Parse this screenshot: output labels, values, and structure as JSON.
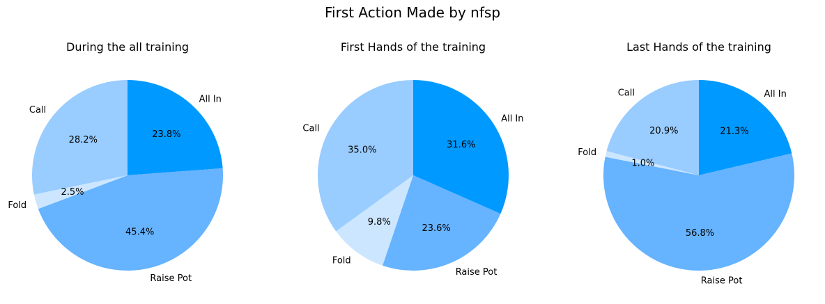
{
  "figure": {
    "title": "First Action Made by nfsp"
  },
  "chart_data": [
    {
      "type": "pie",
      "title": "During the all training",
      "labels": [
        "All In",
        "Raise Pot",
        "Fold",
        "Call"
      ],
      "values": [
        23.8,
        45.4,
        2.5,
        28.2
      ],
      "value_labels": [
        "23.8%",
        "45.4%",
        "2.5%",
        "28.2%"
      ],
      "colors": [
        "#0099ff",
        "#66b3ff",
        "#cce6ff",
        "#99ccff"
      ],
      "start_angle_deg": 90,
      "direction": "clockwise"
    },
    {
      "type": "pie",
      "title": "First Hands of the training",
      "labels": [
        "All In",
        "Raise Pot",
        "Fold",
        "Call"
      ],
      "values": [
        31.6,
        23.6,
        9.8,
        35.0
      ],
      "value_labels": [
        "31.6%",
        "23.6%",
        "9.8%",
        "35.0%"
      ],
      "colors": [
        "#0099ff",
        "#66b3ff",
        "#cce6ff",
        "#99ccff"
      ],
      "start_angle_deg": 90,
      "direction": "clockwise"
    },
    {
      "type": "pie",
      "title": "Last Hands of the training",
      "labels": [
        "All In",
        "Raise Pot",
        "Fold",
        "Call"
      ],
      "values": [
        21.3,
        56.8,
        1.0,
        20.9
      ],
      "value_labels": [
        "21.3%",
        "56.8%",
        "1.0%",
        "20.9%"
      ],
      "colors": [
        "#0099ff",
        "#66b3ff",
        "#cce6ff",
        "#99ccff"
      ],
      "start_angle_deg": 90,
      "direction": "clockwise"
    }
  ]
}
